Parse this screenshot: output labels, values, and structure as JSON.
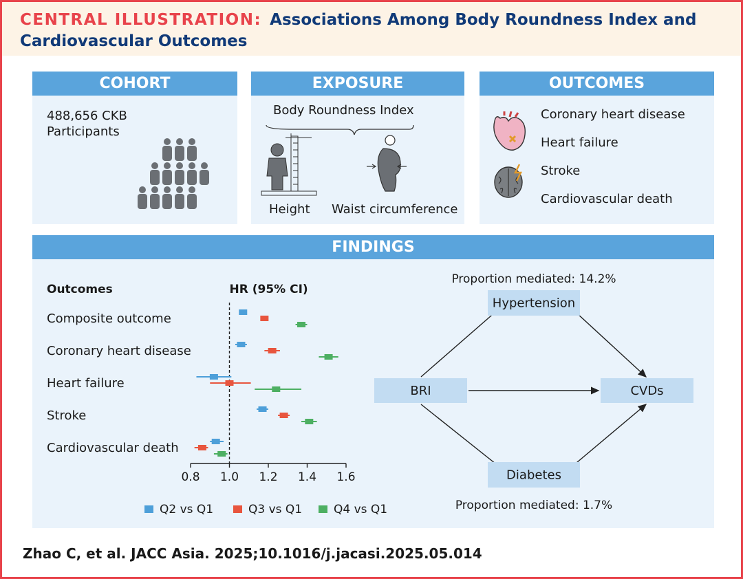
{
  "header": {
    "label": "CENTRAL ILLUSTRATION:",
    "title_line1": "Associations Among Body Roundness Index and",
    "title_line2": "Cardiovascular Outcomes"
  },
  "cohort": {
    "heading": "COHORT",
    "count": "488,656 CKB",
    "unit": "Participants"
  },
  "exposure": {
    "heading": "EXPOSURE",
    "index_label": "Body Roundness Index",
    "height_label": "Height",
    "waist_label": "Waist circumference"
  },
  "outcomes": {
    "heading": "OUTCOMES",
    "items": [
      "Coronary heart disease",
      "Heart failure",
      "Stroke",
      "Cardiovascular death"
    ]
  },
  "findings": {
    "heading": "FINDINGS",
    "mediation": {
      "top_label": "Proportion mediated: 14.2%",
      "bottom_label": "Proportion mediated: 1.7%",
      "nodes": {
        "exposure": "BRI",
        "upper": "Hypertension",
        "lower": "Diabetes",
        "outcome": "CVDs"
      }
    }
  },
  "chart_data": {
    "type": "forest",
    "column_header": "Outcomes",
    "xlabel": "HR (95% CI)",
    "xlim": [
      0.8,
      1.6
    ],
    "xticks": [
      0.8,
      1.0,
      1.2,
      1.4,
      1.6
    ],
    "xtick_labels": [
      "0.8",
      "1.0",
      "1.2",
      "1.4",
      "1.6"
    ],
    "reference_line": 1.0,
    "categories": [
      "Composite outcome",
      "Coronary heart disease",
      "Heart failure",
      "Stroke",
      "Cardiovascular death"
    ],
    "series": [
      {
        "name": "Q2 vs Q1",
        "color": "#4d9fd9",
        "hr": [
          1.07,
          1.06,
          0.92,
          1.17,
          0.93
        ],
        "lower": [
          1.05,
          1.03,
          0.83,
          1.14,
          0.9
        ],
        "upper": [
          1.09,
          1.09,
          1.01,
          1.2,
          0.97
        ]
      },
      {
        "name": "Q3 vs Q1",
        "color": "#e8553e",
        "hr": [
          1.18,
          1.22,
          1.0,
          1.28,
          0.86
        ],
        "lower": [
          1.16,
          1.18,
          0.9,
          1.25,
          0.82
        ],
        "upper": [
          1.2,
          1.26,
          1.11,
          1.31,
          0.89
        ]
      },
      {
        "name": "Q4 vs Q1",
        "color": "#4daf62",
        "hr": [
          1.37,
          1.51,
          1.24,
          1.41,
          0.96
        ],
        "lower": [
          1.34,
          1.46,
          1.13,
          1.37,
          0.92
        ],
        "upper": [
          1.4,
          1.56,
          1.37,
          1.45,
          0.99
        ]
      }
    ],
    "legend_position": "bottom"
  },
  "citation": "Zhao C, et al. JACC Asia. 2025;10.1016/j.jacasi.2025.05.014",
  "colors": {
    "border": "#e8434b",
    "title": "#113a78",
    "panel_header": "#5aa4dc",
    "panel_body": "#eaf3fb",
    "banner": "#fdf3e6",
    "mediation_box": "#c2dcf2"
  },
  "icons": [
    "people-group-icon",
    "height-measure-icon",
    "waist-measure-icon",
    "heart-icon",
    "brain-icon"
  ]
}
